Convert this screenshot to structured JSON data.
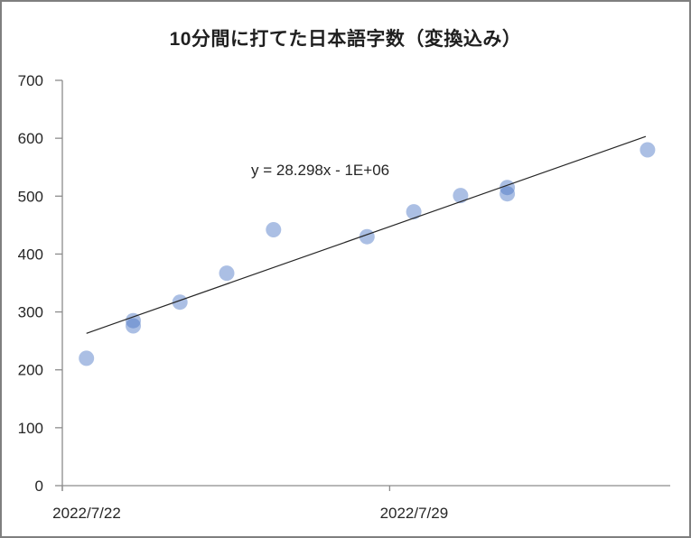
{
  "chart_data": {
    "type": "scatter",
    "title": "10分間に打てた日本語字数（変換込み）",
    "y_axis": {
      "min": 0,
      "max": 700,
      "tick_step": 100,
      "tick_labels": [
        "0",
        "100",
        "200",
        "300",
        "400",
        "500",
        "600",
        "700"
      ]
    },
    "x_axis": {
      "ticks": [
        {
          "label": "2022/7/22",
          "day": 0
        },
        {
          "label": "2022/7/29",
          "day": 7
        }
      ]
    },
    "points": [
      {
        "date": "2022/7/22",
        "value": 220
      },
      {
        "date": "2022/7/23",
        "value": 285
      },
      {
        "date": "2022/7/23",
        "value": 276
      },
      {
        "date": "2022/7/24",
        "value": 317
      },
      {
        "date": "2022/7/25",
        "value": 367
      },
      {
        "date": "2022/7/26",
        "value": 442
      },
      {
        "date": "2022/7/28",
        "value": 430
      },
      {
        "date": "2022/7/29",
        "value": 473
      },
      {
        "date": "2022/7/30",
        "value": 501
      },
      {
        "date": "2022/7/31",
        "value": 515
      },
      {
        "date": "2022/7/31",
        "value": 504
      },
      {
        "date": "2022/8/3",
        "value": 580
      }
    ],
    "trendline": {
      "equation": "y = 28.298x - 1E+06",
      "slope": 28.298,
      "intercept": "-1E+06",
      "start": {
        "day": 0,
        "value": 263
      },
      "end": {
        "day": 11.96,
        "value": 603
      }
    },
    "colors": {
      "point_fill": "rgba(68,114,196,0.45)",
      "axis": "#8c8c8c",
      "text": "#262626",
      "trendline": "#262626",
      "frame_border": "#7f7f7f",
      "background": "#ffffff"
    }
  }
}
